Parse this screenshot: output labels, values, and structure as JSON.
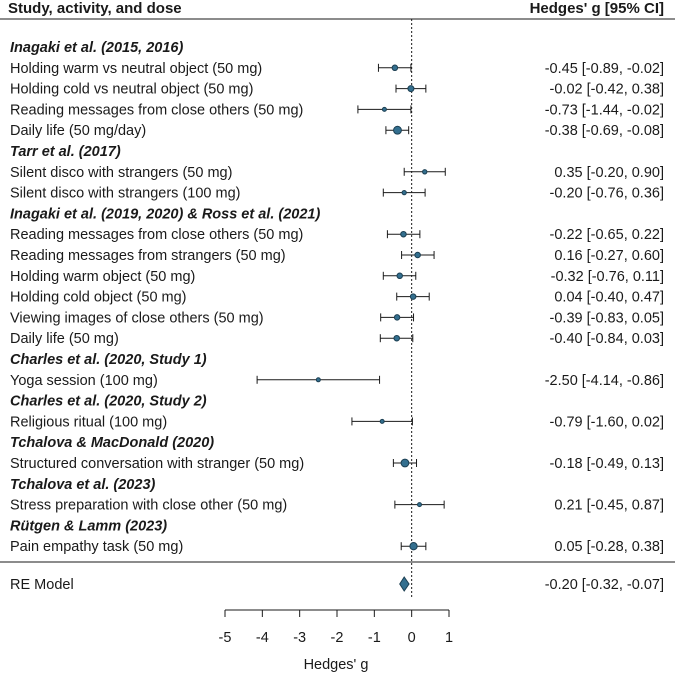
{
  "chart_data": {
    "type": "forest",
    "header": {
      "left": "Study, activity, and dose",
      "right": "Hedges' g [95% CI]"
    },
    "xlabel": "Hedges' g",
    "xlim": [
      -5,
      1
    ],
    "xticks": [
      "-5",
      "-4",
      "-3",
      "-2",
      "-1",
      "0",
      "1"
    ],
    "reference_line": 0,
    "groups": [
      {
        "title": "Inagaki et al. (2015, 2016)",
        "rows": [
          {
            "label": "Holding warm vs neutral object (50 mg)",
            "g": -0.45,
            "lo": -0.89,
            "hi": -0.02,
            "ci_text": "-0.45 [-0.89, -0.02]"
          },
          {
            "label": "Holding cold vs neutral object (50 mg)",
            "g": -0.02,
            "lo": -0.42,
            "hi": 0.38,
            "ci_text": "-0.02 [-0.42,  0.38]"
          },
          {
            "label": "Reading messages from close others (50 mg)",
            "g": -0.73,
            "lo": -1.44,
            "hi": -0.02,
            "ci_text": "-0.73 [-1.44, -0.02]"
          },
          {
            "label": "Daily life (50 mg/day)",
            "g": -0.38,
            "lo": -0.69,
            "hi": -0.08,
            "ci_text": "-0.38 [-0.69, -0.08]"
          }
        ]
      },
      {
        "title": "Tarr et al. (2017)",
        "rows": [
          {
            "label": "Silent disco with strangers (50 mg)",
            "g": 0.35,
            "lo": -0.2,
            "hi": 0.9,
            "ci_text": "0.35 [-0.20,  0.90]"
          },
          {
            "label": "Silent disco with strangers (100 mg)",
            "g": -0.2,
            "lo": -0.76,
            "hi": 0.36,
            "ci_text": "-0.20 [-0.76,  0.36]"
          }
        ]
      },
      {
        "title": "Inagaki et al. (2019, 2020) & Ross et al. (2021)",
        "rows": [
          {
            "label": "Reading messages from close others (50 mg)",
            "g": -0.22,
            "lo": -0.65,
            "hi": 0.22,
            "ci_text": "-0.22 [-0.65,  0.22]"
          },
          {
            "label": "Reading messages from strangers (50 mg)",
            "g": 0.16,
            "lo": -0.27,
            "hi": 0.6,
            "ci_text": "0.16 [-0.27,  0.60]"
          },
          {
            "label": "Holding warm object (50 mg)",
            "g": -0.32,
            "lo": -0.76,
            "hi": 0.11,
            "ci_text": "-0.32 [-0.76,  0.11]"
          },
          {
            "label": "Holding cold object (50 mg)",
            "g": 0.04,
            "lo": -0.4,
            "hi": 0.47,
            "ci_text": "0.04 [-0.40,  0.47]"
          },
          {
            "label": "Viewing images of close others (50 mg)",
            "g": -0.39,
            "lo": -0.83,
            "hi": 0.05,
            "ci_text": "-0.39 [-0.83,  0.05]"
          },
          {
            "label": "Daily life (50 mg)",
            "g": -0.4,
            "lo": -0.84,
            "hi": 0.03,
            "ci_text": "-0.40 [-0.84,  0.03]"
          }
        ]
      },
      {
        "title": "Charles et al. (2020, Study 1)",
        "rows": [
          {
            "label": "Yoga session (100 mg)",
            "g": -2.5,
            "lo": -4.14,
            "hi": -0.86,
            "ci_text": "-2.50 [-4.14, -0.86]"
          }
        ]
      },
      {
        "title": "Charles et al. (2020, Study 2)",
        "rows": [
          {
            "label": "Religious ritual (100 mg)",
            "g": -0.79,
            "lo": -1.6,
            "hi": 0.02,
            "ci_text": "-0.79 [-1.60,  0.02]"
          }
        ]
      },
      {
        "title": "Tchalova & MacDonald (2020)",
        "rows": [
          {
            "label": "Structured conversation with stranger (50 mg)",
            "g": -0.18,
            "lo": -0.49,
            "hi": 0.13,
            "ci_text": "-0.18 [-0.49,  0.13]"
          }
        ]
      },
      {
        "title": "Tchalova et al. (2023)",
        "rows": [
          {
            "label": "Stress preparation with close other (50 mg)",
            "g": 0.21,
            "lo": -0.45,
            "hi": 0.87,
            "ci_text": "0.21 [-0.45,  0.87]"
          }
        ]
      },
      {
        "title": "Rütgen & Lamm (2023)",
        "rows": [
          {
            "label": "Pain empathy task (50 mg)",
            "g": 0.05,
            "lo": -0.28,
            "hi": 0.38,
            "ci_text": "0.05 [-0.28,  0.38]"
          }
        ]
      }
    ],
    "summary": {
      "label": "RE Model",
      "g": -0.2,
      "lo": -0.32,
      "hi": -0.07,
      "ci_text": "-0.20 [-0.32, -0.07]"
    },
    "colors": {
      "marker": "#336f8f",
      "marker_stroke": "#1c3f52",
      "ink": "#1a1a1a"
    }
  }
}
